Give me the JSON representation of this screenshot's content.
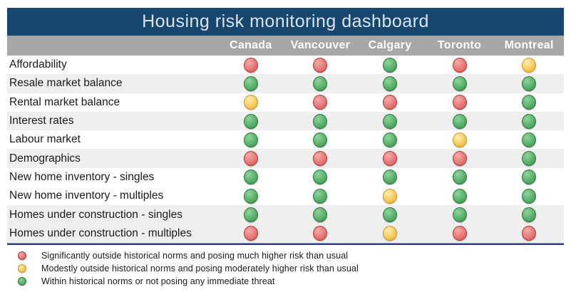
{
  "chart_data": {
    "type": "table",
    "title": "Housing risk monitoring dashboard",
    "columns": [
      "Canada",
      "Vancouver",
      "Calgary",
      "Toronto",
      "Montreal"
    ],
    "rows": [
      {
        "label": "Affordability",
        "values": [
          "red",
          "red",
          "green",
          "red",
          "yellow"
        ],
        "shaded": false
      },
      {
        "label": "Resale market balance",
        "values": [
          "green",
          "green",
          "green",
          "green",
          "green"
        ],
        "shaded": true
      },
      {
        "label": "Rental market balance",
        "values": [
          "yellow",
          "red",
          "red",
          "red",
          "green"
        ],
        "shaded": false
      },
      {
        "label": "Interest rates",
        "values": [
          "green",
          "green",
          "green",
          "green",
          "green"
        ],
        "shaded": true
      },
      {
        "label": "Labour market",
        "values": [
          "green",
          "green",
          "green",
          "yellow",
          "green"
        ],
        "shaded": false
      },
      {
        "label": "Demographics",
        "values": [
          "red",
          "red",
          "red",
          "red",
          "green"
        ],
        "shaded": true
      },
      {
        "label": "New home inventory - singles",
        "values": [
          "green",
          "green",
          "green",
          "green",
          "green"
        ],
        "shaded": false
      },
      {
        "label": "New home inventory - multiples",
        "values": [
          "green",
          "green",
          "yellow",
          "green",
          "green"
        ],
        "shaded": false
      },
      {
        "label": "Homes under construction - singles",
        "values": [
          "green",
          "green",
          "green",
          "green",
          "green"
        ],
        "shaded": true
      },
      {
        "label": "Homes under construction - multiples",
        "values": [
          "red",
          "red",
          "yellow",
          "red",
          "red"
        ],
        "shaded": true
      }
    ],
    "legend": [
      {
        "color": "red",
        "text": "Significantly outside historical norms and posing much higher risk than usual"
      },
      {
        "color": "yellow",
        "text": "Modestly outside historical norms and posing moderately higher risk than usual"
      },
      {
        "color": "green",
        "text": "Within historical norms or not posing any immediate threat"
      }
    ],
    "layout_hints": {
      "legend_position": "bottom",
      "grid": "off"
    }
  },
  "colors": {
    "title_bar_navy": "#17466e",
    "title_text": "#d9e4f1",
    "column_header_gray": "#a7a7a7",
    "row_stripe_gray": "#efefef",
    "separator_blue": "#2e3e8e",
    "status_red": "#e06663",
    "status_yellow": "#f3bd3e",
    "status_green": "#47a35a"
  }
}
